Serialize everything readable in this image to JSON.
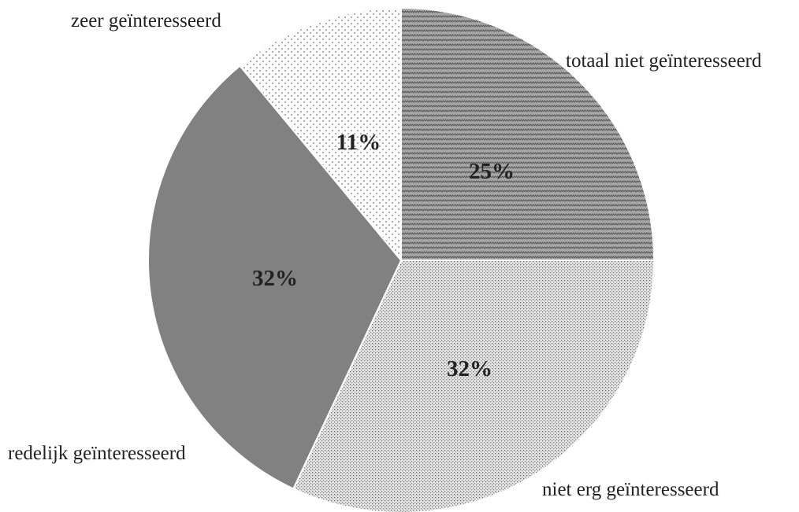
{
  "chart_data": {
    "type": "pie",
    "title": "",
    "start_angle_deg": 0,
    "direction": "clockwise",
    "slices": [
      {
        "label": "totaal niet geïnteresseerd",
        "value": 25,
        "value_label": "25%",
        "pattern": "zigzag",
        "color": "#9a9a9a"
      },
      {
        "label": "niet erg geïnteresseerd",
        "value": 32,
        "value_label": "32%",
        "pattern": "fine-dots",
        "color": "#d8d8d8"
      },
      {
        "label": "redelijk geïnteresseerd",
        "value": 32,
        "value_label": "32%",
        "pattern": "solid",
        "color": "#818181"
      },
      {
        "label": "zeer geïnteresseerd",
        "value": 11,
        "value_label": "11%",
        "pattern": "sparse-dots",
        "color": "#f7f7f7"
      }
    ],
    "legend": "none"
  }
}
